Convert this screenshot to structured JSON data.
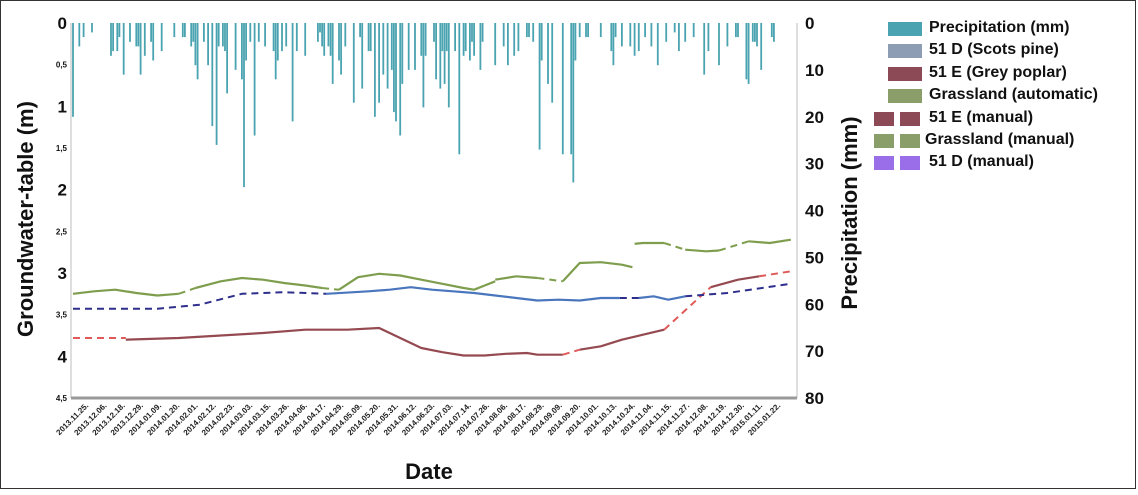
{
  "chart_data": {
    "type": "line",
    "xlabel": "Date",
    "ylabel_left": "Groundwater-table (m)",
    "ylabel_right": "Precipitation (mm)",
    "ylim_left": [
      0,
      4.5
    ],
    "ylim_right": [
      0,
      80
    ],
    "y_reversed": true,
    "left_ticks": [
      "0",
      "0,5",
      "1",
      "1,5",
      "2",
      "2,5",
      "3",
      "3,5",
      "4",
      "4,5"
    ],
    "right_ticks": [
      "0",
      "10",
      "20",
      "30",
      "40",
      "50",
      "60",
      "70",
      "80"
    ],
    "x_ticks": [
      "2013.11.25.",
      "2013.12.06.",
      "2013.12.18.",
      "2013.12.29.",
      "2014.01.09.",
      "2014.01.20.",
      "2014.02.01.",
      "2014.02.12.",
      "2014.02.23.",
      "2014.03.03.",
      "2014.03.15.",
      "2014.03.26.",
      "2014.04.06.",
      "2014.04.17.",
      "2014.04.29.",
      "2014.05.09.",
      "2014.05.20.",
      "2014.05.31.",
      "2014.06.12.",
      "2014.06.23.",
      "2014.07.03.",
      "2014.07.14.",
      "2014.07.26.",
      "2014.08.06.",
      "2014.08.17.",
      "2014.08.29.",
      "2014.09.09.",
      "2014.09.20.",
      "2014.10.01.",
      "2014.10.13.",
      "2014.10.24.",
      "2014.11.04.",
      "2014.11.15.",
      "2014.11.27.",
      "2014.12.08.",
      "2014.12.19.",
      "2014.12.30.",
      "2015.01.11.",
      "2015.01.22."
    ],
    "legend": "right",
    "series": [
      {
        "name": "Precipitation (mm)",
        "kind": "bar",
        "axis": "right",
        "color": "#4aa3b0",
        "x": [
          0,
          3,
          5,
          9,
          18,
          19,
          21,
          22,
          24,
          27,
          30,
          31,
          32,
          34,
          37,
          38,
          42,
          48,
          52,
          53,
          56,
          57,
          58,
          59,
          62,
          64,
          66,
          68,
          69,
          71,
          72,
          73,
          77,
          80,
          81,
          82,
          84,
          86,
          88,
          91,
          95,
          96,
          97,
          99,
          101,
          104,
          106,
          110,
          116,
          117,
          118,
          119,
          121,
          122,
          123,
          126,
          127,
          129,
          133,
          136,
          137,
          140,
          141,
          143,
          145,
          147,
          149,
          151,
          152,
          153,
          155,
          156,
          159,
          162,
          165,
          166,
          167,
          171,
          172,
          174,
          175,
          176,
          177,
          178,
          181,
          183,
          185,
          186,
          188,
          189,
          190,
          193,
          194,
          200,
          204,
          206,
          209,
          211,
          215,
          216,
          218,
          221,
          222,
          225,
          227,
          232,
          236,
          237,
          238,
          240,
          243,
          244,
          250,
          255,
          256,
          257,
          260,
          264,
          266,
          268,
          271,
          274,
          277,
          281,
          285,
          287,
          290,
          294,
          299,
          301,
          306,
          310,
          314,
          315,
          319,
          320,
          322,
          323,
          324,
          326,
          331,
          332
        ],
        "values": [
          20,
          5,
          3,
          2,
          7,
          6,
          6,
          3,
          11,
          4,
          5,
          5,
          11,
          7,
          4,
          8,
          6,
          3,
          3,
          3,
          5,
          4,
          9,
          12,
          4,
          9,
          22,
          26,
          5,
          5,
          6,
          15,
          10,
          12,
          35,
          8,
          4,
          24,
          4,
          5,
          6,
          12,
          8,
          6,
          5,
          21,
          6,
          7,
          4,
          2,
          5,
          7,
          5,
          7,
          13,
          8,
          11,
          5,
          17,
          3,
          14,
          6,
          6,
          20,
          17,
          11,
          14,
          10,
          19,
          21,
          24,
          13,
          10,
          10,
          7,
          18,
          7,
          4,
          12,
          14,
          6,
          13,
          6,
          18,
          6,
          28,
          7,
          6,
          8,
          4,
          7,
          10,
          4,
          9,
          5,
          9,
          7,
          6,
          3,
          3,
          4,
          27,
          8,
          13,
          17,
          28,
          28,
          34,
          8,
          3,
          3,
          3,
          3,
          6,
          9,
          3,
          5,
          5,
          7,
          6,
          3,
          5,
          9,
          4,
          2,
          6,
          4,
          3,
          11,
          6,
          9,
          5,
          3,
          3,
          12,
          13,
          4,
          4,
          5,
          10,
          3,
          4
        ]
      },
      {
        "name": "51 D (Scots pine)",
        "kind": "line",
        "axis": "left",
        "color": "#4a76be",
        "segments": [
          {
            "x": [
              120,
              140,
              150,
              160,
              170,
              180,
              190,
              200,
              210,
              220,
              230,
              240,
              250,
              259
            ],
            "y": [
              3.25,
              3.22,
              3.2,
              3.17,
              3.2,
              3.22,
              3.24,
              3.27,
              3.3,
              3.33,
              3.32,
              3.33,
              3.3,
              3.3
            ]
          },
          {
            "x": [
              268,
              275,
              282,
              290
            ],
            "y": [
              3.3,
              3.28,
              3.32,
              3.28
            ]
          }
        ]
      },
      {
        "name": "51 E (Grey poplar)",
        "kind": "line",
        "axis": "left",
        "color": "#944a50",
        "segments": [
          {
            "x": [
              25,
              50,
              70,
              90,
              110,
              130,
              145,
              155,
              165,
              175,
              185,
              195,
              205,
              215,
              220,
              232
            ],
            "y": [
              3.8,
              3.78,
              3.75,
              3.72,
              3.68,
              3.68,
              3.66,
              3.78,
              3.9,
              3.95,
              3.99,
              3.99,
              3.97,
              3.96,
              3.98,
              3.98
            ]
          },
          {
            "x": [
              240,
              250,
              260,
              270,
              280
            ],
            "y": [
              3.92,
              3.88,
              3.8,
              3.74,
              3.68
            ]
          },
          {
            "x": [
              302,
              315,
              325
            ],
            "y": [
              3.17,
              3.08,
              3.04
            ]
          }
        ]
      },
      {
        "name": "Grassland (automatic)",
        "kind": "line",
        "axis": "left",
        "color": "#7e9e4e",
        "segments": [
          {
            "x": [
              0,
              10,
              20,
              30,
              40,
              50
            ],
            "y": [
              3.25,
              3.22,
              3.2,
              3.24,
              3.27,
              3.25
            ]
          },
          {
            "x": [
              58,
              70,
              80,
              90,
              100,
              110,
              118
            ],
            "y": [
              3.18,
              3.1,
              3.06,
              3.08,
              3.12,
              3.15,
              3.18
            ]
          },
          {
            "x": [
              126,
              135,
              145,
              155,
              165,
              175,
              185,
              190,
              195,
              200
            ],
            "y": [
              3.2,
              3.05,
              3.01,
              3.03,
              3.08,
              3.13,
              3.18,
              3.2,
              3.15,
              3.1
            ]
          },
          {
            "x": [
              200,
              210,
              220
            ],
            "y": [
              3.08,
              3.04,
              3.06
            ]
          },
          {
            "x": [
              232,
              240,
              250,
              260,
              265
            ],
            "y": [
              3.1,
              2.88,
              2.87,
              2.9,
              2.93
            ]
          },
          {
            "x": [
              266,
              270,
              280
            ],
            "y": [
              2.65,
              2.64,
              2.64
            ]
          },
          {
            "x": [
              290,
              300,
              306
            ],
            "y": [
              2.72,
              2.74,
              2.73
            ]
          },
          {
            "x": [
              320,
              330,
              340
            ],
            "y": [
              2.62,
              2.64,
              2.6
            ]
          }
        ]
      },
      {
        "name": "51 E (manual)",
        "kind": "dashed",
        "axis": "left",
        "color": "#e05a5a",
        "segments": [
          {
            "x": [
              0,
              25
            ],
            "y": [
              3.78,
              3.78
            ]
          },
          {
            "x": [
              232,
              240
            ],
            "y": [
              3.98,
              3.92
            ]
          },
          {
            "x": [
              280,
              302
            ],
            "y": [
              3.68,
              3.17
            ]
          },
          {
            "x": [
              325,
              340
            ],
            "y": [
              3.04,
              2.98
            ]
          }
        ]
      },
      {
        "name": "Grassland (manual)",
        "kind": "dashed",
        "axis": "left",
        "color": "#7e9e4e",
        "segments": [
          {
            "x": [
              50,
              58
            ],
            "y": [
              3.25,
              3.18
            ]
          },
          {
            "x": [
              118,
              126
            ],
            "y": [
              3.18,
              3.2
            ]
          },
          {
            "x": [
              220,
              232
            ],
            "y": [
              3.06,
              3.1
            ]
          },
          {
            "x": [
              280,
              290
            ],
            "y": [
              2.64,
              2.72
            ]
          },
          {
            "x": [
              306,
              320
            ],
            "y": [
              2.73,
              2.62
            ]
          }
        ]
      },
      {
        "name": "51 D (manual)",
        "kind": "dashed",
        "axis": "left",
        "color": "#2e2e8c",
        "segments": [
          {
            "x": [
              0,
              40,
              60,
              80,
              100,
              120
            ],
            "y": [
              3.43,
              3.43,
              3.38,
              3.25,
              3.23,
              3.25
            ]
          },
          {
            "x": [
              259,
              268
            ],
            "y": [
              3.3,
              3.3
            ]
          },
          {
            "x": [
              290,
              310,
              340
            ],
            "y": [
              3.28,
              3.24,
              3.13
            ]
          }
        ]
      }
    ]
  }
}
